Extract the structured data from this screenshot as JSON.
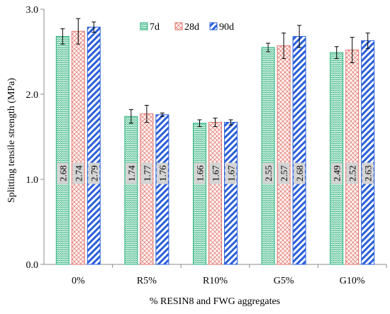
{
  "chart_data": {
    "type": "bar",
    "title": "",
    "xlabel": "% RESIN8 and FWG aggregates",
    "ylabel": "Splitting tensile strength (MPa)",
    "ylim": [
      0,
      3.0
    ],
    "yticks": [
      "0.0",
      "1.0",
      "2.0",
      "3.0"
    ],
    "categories": [
      "0%",
      "R5%",
      "R10%",
      "G5%",
      "G10%"
    ],
    "series": [
      {
        "name": "7d",
        "values": [
          2.68,
          1.74,
          1.66,
          2.55,
          2.49
        ],
        "labels": [
          "2.68",
          "1.74",
          "1.66",
          "2.55",
          "2.49"
        ],
        "errors": [
          0.09,
          0.08,
          0.04,
          0.05,
          0.07
        ],
        "color": "#2db37d",
        "fill": "#dff3ea",
        "pattern": "zigzag"
      },
      {
        "name": "28d",
        "values": [
          2.74,
          1.77,
          1.67,
          2.57,
          2.52
        ],
        "labels": [
          "2.74",
          "1.77",
          "1.67",
          "2.57",
          "2.52"
        ],
        "errors": [
          0.15,
          0.1,
          0.05,
          0.15,
          0.15
        ],
        "color": "#e0736b",
        "fill": "#fde8e6",
        "pattern": "crosshatch"
      },
      {
        "name": "90d",
        "values": [
          2.79,
          1.76,
          1.67,
          2.68,
          2.63
        ],
        "labels": [
          "2.79",
          "1.76",
          "1.67",
          "2.68",
          "2.63"
        ],
        "errors": [
          0.06,
          0.02,
          0.03,
          0.13,
          0.09
        ],
        "color": "#2a5fd8",
        "fill": "#ffffff",
        "pattern": "diagonal"
      }
    ],
    "grid": false,
    "legend_position": "top-center"
  }
}
